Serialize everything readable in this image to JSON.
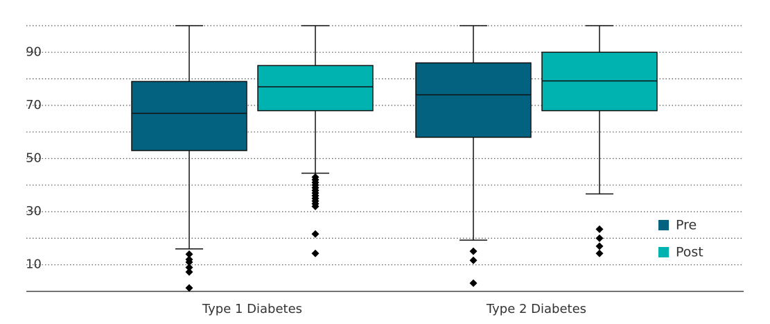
{
  "chart_data": {
    "type": "box",
    "categories": [
      "Type 1 Diabetes",
      "Type 2 Diabetes"
    ],
    "ylim": [
      0,
      100
    ],
    "yticks": [
      10,
      30,
      50,
      70,
      90
    ],
    "minor_yticks": [
      20,
      40,
      60,
      80,
      100
    ],
    "grid": true,
    "legend_position": "lower right",
    "series": [
      {
        "name": "Pre",
        "color": "#03627f",
        "whisker_high": [
          100,
          100
        ],
        "q3": [
          79,
          86
        ],
        "median": [
          67,
          74
        ],
        "q1": [
          53,
          58
        ],
        "whisker_low": [
          16,
          19.3
        ],
        "outliers": [
          [
            14,
            12,
            11,
            9,
            7.3,
            1.3
          ],
          [
            15.1,
            11.7,
            3.1
          ]
        ]
      },
      {
        "name": "Post",
        "color": "#00b2b0",
        "whisker_high": [
          100,
          100
        ],
        "q3": [
          85,
          90
        ],
        "median": [
          77,
          79.2
        ],
        "q1": [
          68,
          68
        ],
        "whisker_low": [
          44.5,
          36.7
        ],
        "outliers": [
          [
            43,
            42,
            41,
            40,
            39,
            38,
            37,
            36,
            35,
            34,
            33,
            32,
            21.6,
            14.3
          ],
          [
            23.4,
            20,
            17,
            14.3
          ]
        ]
      }
    ]
  }
}
